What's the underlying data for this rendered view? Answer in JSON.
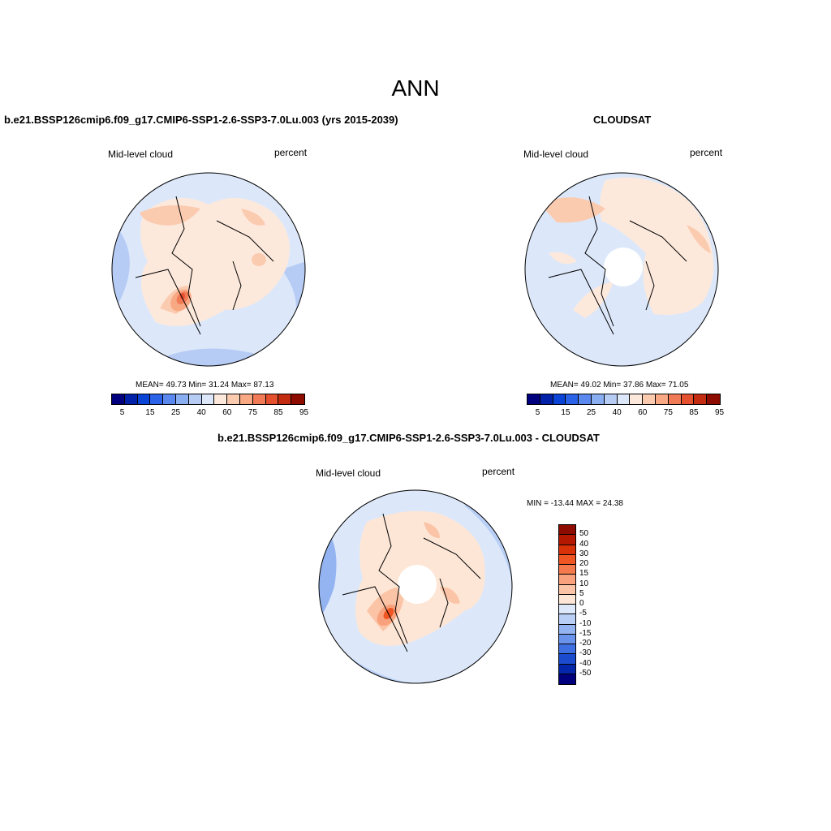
{
  "figure": {
    "season_title": "ANN"
  },
  "panels": [
    {
      "title": "b.e21.BSSP126cmip6.f09_g17.CMIP6-SSP1-2.6-SSP3-7.0Lu.003 (yrs 2015-2039)",
      "variable": "Mid-level cloud",
      "units": "percent",
      "stats": "MEAN=  49.73  Min=  31.24  Max=  87.13"
    },
    {
      "title": "CLOUDSAT",
      "variable": "Mid-level cloud",
      "units": "percent",
      "stats": "MEAN=  49.02  Min=  37.86  Max=  71.05"
    },
    {
      "title": "b.e21.BSSP126cmip6.f09_g17.CMIP6-SSP1-2.6-SSP3-7.0Lu.003 - CLOUDSAT",
      "variable": "Mid-level cloud",
      "units": "percent",
      "stats": "MIN = -13.44 MAX =  24.38"
    }
  ],
  "colorbar_abs": {
    "colors": [
      "#00007f",
      "#0021a8",
      "#0a44d6",
      "#2a63e8",
      "#5a88ee",
      "#8aaef2",
      "#b7ccf5",
      "#dce8fa",
      "#fde9dc",
      "#fbcbb0",
      "#f8a883",
      "#f27b57",
      "#e5502f",
      "#c42c12",
      "#8e0b00"
    ],
    "labels": [
      "5",
      "15",
      "25",
      "40",
      "60",
      "75",
      "85",
      "95"
    ]
  },
  "colorbar_diff": {
    "colors": [
      "#8e0b00",
      "#b51800",
      "#d93208",
      "#ef5624",
      "#f47a4d",
      "#f8a17c",
      "#fbc4a6",
      "#fde6d6",
      "#dde9fa",
      "#b9cff6",
      "#93b4f1",
      "#6a94ec",
      "#3f70e3",
      "#1b4cd0",
      "#0326aa",
      "#00007f"
    ],
    "labels": [
      "50",
      "40",
      "30",
      "20",
      "15",
      "10",
      "5",
      "0",
      "-5",
      "-10",
      "-15",
      "-20",
      "-30",
      "-40",
      "-50"
    ]
  },
  "chart_data": [
    {
      "type": "heatmap",
      "title": "b.e21.BSSP126cmip6.f09_g17.CMIP6-SSP1-2.6-SSP3-7.0Lu.003 (yrs 2015-2039)",
      "variable": "Mid-level cloud",
      "units": "percent",
      "projection": "north polar stereographic",
      "levels": [
        5,
        10,
        15,
        20,
        25,
        30,
        40,
        50,
        60,
        70,
        75,
        80,
        85,
        90,
        95
      ],
      "mean": 49.73,
      "min": 31.24,
      "max": 87.13
    },
    {
      "type": "heatmap",
      "title": "CLOUDSAT",
      "variable": "Mid-level cloud",
      "units": "percent",
      "projection": "north polar stereographic",
      "levels": [
        5,
        10,
        15,
        20,
        25,
        30,
        40,
        50,
        60,
        70,
        75,
        80,
        85,
        90,
        95
      ],
      "mean": 49.02,
      "min": 37.86,
      "max": 71.05
    },
    {
      "type": "heatmap",
      "title": "b.e21.BSSP126cmip6.f09_g17.CMIP6-SSP1-2.6-SSP3-7.0Lu.003 - CLOUDSAT",
      "variable": "Mid-level cloud",
      "units": "percent",
      "projection": "north polar stereographic",
      "levels": [
        -50,
        -40,
        -30,
        -20,
        -15,
        -10,
        -5,
        0,
        5,
        10,
        15,
        20,
        30,
        40,
        50
      ],
      "min": -13.44,
      "max": 24.38
    }
  ]
}
